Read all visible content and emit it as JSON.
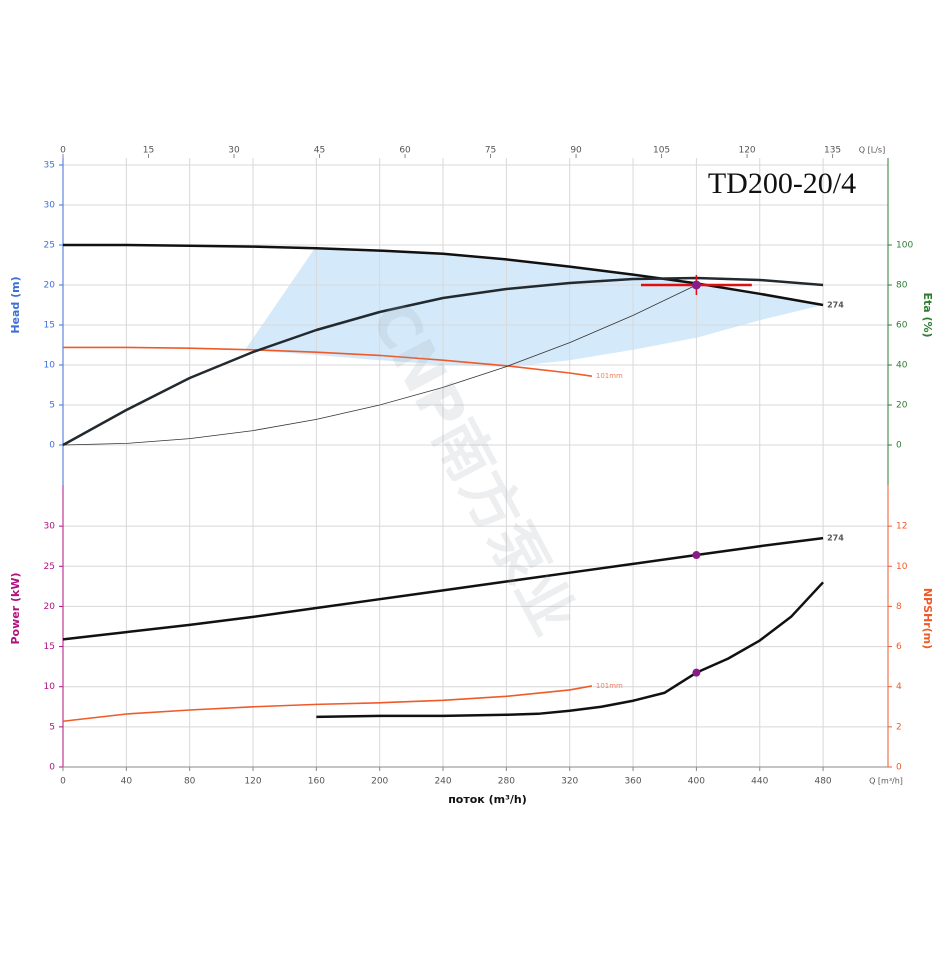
{
  "watermark": "CNP南方泵业",
  "chart_data": [
    {
      "type": "line",
      "title": "TD200-20/4",
      "x2label": "Q [L/s]",
      "x2lim": [
        0,
        144.72
      ],
      "x2ticks": [
        0,
        15,
        30,
        45,
        60,
        75,
        90,
        105,
        120,
        135
      ],
      "xlim": [
        0,
        521
      ],
      "ylabel": "Head (m)",
      "ylim": [
        -5,
        35
      ],
      "yticks": [
        0,
        5,
        10,
        15,
        20,
        25,
        30,
        35
      ],
      "ycolor": "#3f6fd6",
      "y2label": "Eta (%)",
      "y2lim": [
        -20,
        140
      ],
      "y2ticks": [
        0,
        20,
        40,
        60,
        80,
        100
      ],
      "y2color": "#2e7d32",
      "grid": true,
      "area": {
        "color": "#d4eafa",
        "x": [
          115,
          159,
          200,
          240,
          280,
          320,
          360,
          400,
          440,
          480,
          440,
          400,
          360,
          320,
          280,
          240,
          200,
          160
        ],
        "values": [
          11.9,
          24.6,
          24.3,
          23.9,
          23.2,
          22.3,
          21.3,
          20.2,
          18.9,
          17.5,
          15.6,
          13.4,
          11.9,
          10.6,
          9.75,
          10,
          10.6,
          11.25
        ]
      },
      "series": [
        {
          "name": "274",
          "color": "#111111",
          "x": [
            0,
            40,
            80,
            120,
            160,
            200,
            240,
            280,
            320,
            360,
            400,
            440,
            480
          ],
          "values": [
            25,
            25,
            24.9,
            24.8,
            24.6,
            24.3,
            23.9,
            23.2,
            22.3,
            21.3,
            20.2,
            18.9,
            17.5
          ]
        },
        {
          "name": "101mm",
          "color": "#f05a28",
          "x": [
            0,
            40,
            80,
            120,
            160,
            200,
            240,
            280,
            320,
            334
          ],
          "values": [
            12.2,
            12.2,
            12.1,
            11.9,
            11.6,
            11.2,
            10.6,
            9.9,
            9.0,
            8.6
          ]
        },
        {
          "color": "#222a30",
          "axis": "y2",
          "x": [
            0,
            40,
            80,
            120,
            160,
            200,
            240,
            280,
            320,
            360,
            400,
            440,
            480
          ],
          "values": [
            0,
            17.5,
            33.5,
            46.5,
            57.5,
            66.5,
            73.5,
            78,
            81,
            83,
            83.5,
            82.5,
            80
          ]
        },
        {
          "color": "#333333",
          "thin": true,
          "x": [
            0,
            40,
            80,
            120,
            160,
            200,
            240,
            280,
            320,
            360,
            400
          ],
          "values": [
            0,
            0.2,
            0.8,
            1.8,
            3.2,
            5,
            7.2,
            9.8,
            12.8,
            16.2,
            20
          ]
        }
      ],
      "duty_point": {
        "x": 400,
        "y": 20,
        "x_range": [
          365,
          435
        ],
        "y_range": [
          18.75,
          21.25
        ],
        "color": "#e01010",
        "marker_color": "#8b1a89"
      }
    },
    {
      "type": "line",
      "xlabel": "поток (m³/h)",
      "xunit": "Q [m³/h]",
      "xlim": [
        0,
        521
      ],
      "xticks": [
        0,
        40,
        80,
        120,
        160,
        200,
        240,
        280,
        320,
        360,
        400,
        440,
        480
      ],
      "ylabel": "Power (kW)",
      "ylim": [
        0,
        34.5
      ],
      "yticks": [
        0,
        5,
        10,
        15,
        20,
        25,
        30
      ],
      "ycolor": "#b0127f",
      "y2label": "NPSHr(m)",
      "y2lim": [
        0,
        13.8
      ],
      "y2ticks": [
        0,
        2,
        4,
        6,
        8,
        10,
        12
      ],
      "y2color": "#f05a28",
      "grid": true,
      "series": [
        {
          "name": "274",
          "color": "#111111",
          "x": [
            0,
            40,
            80,
            120,
            160,
            200,
            240,
            280,
            320,
            360,
            400,
            440,
            480
          ],
          "values": [
            15.9,
            16.8,
            17.7,
            18.7,
            19.8,
            20.9,
            22.0,
            23.1,
            24.2,
            25.3,
            26.4,
            27.5,
            28.5
          ]
        },
        {
          "name": "101mm",
          "color": "#f05a28",
          "x": [
            0,
            40,
            80,
            120,
            160,
            200,
            240,
            280,
            320,
            334
          ],
          "values": [
            5.7,
            6.6,
            7.1,
            7.5,
            7.8,
            8.0,
            8.3,
            8.8,
            9.6,
            10.1
          ]
        },
        {
          "color": "#111111",
          "axis": "y2",
          "x": [
            160,
            200,
            240,
            280,
            300,
            320,
            340,
            360,
            380,
            400,
            420,
            440,
            460,
            480
          ],
          "values": [
            2.5,
            2.55,
            2.55,
            2.6,
            2.65,
            2.8,
            3.0,
            3.3,
            3.7,
            4.7,
            5.4,
            6.3,
            7.5,
            9.2
          ]
        }
      ],
      "markers": [
        {
          "x": 400,
          "y": 26.4,
          "color": "#8b1a89"
        },
        {
          "x": 400,
          "y": 4.7,
          "axis": "y2",
          "color": "#8b1a89"
        }
      ]
    }
  ]
}
